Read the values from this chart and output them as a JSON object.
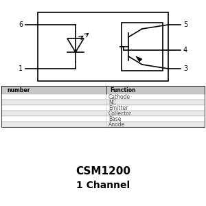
{
  "title": "CSM1200",
  "subtitle": "1 Channel",
  "pin_numbers_left": [
    "6",
    "1"
  ],
  "pin_numbers_right": [
    "5",
    "4",
    "3"
  ],
  "table_header": [
    "number",
    "Function"
  ],
  "table_rows": [
    [
      "",
      "Cathode"
    ],
    [
      "",
      "NC"
    ],
    [
      "",
      "Emitter"
    ],
    [
      "",
      "Collector"
    ],
    [
      "",
      "Base"
    ],
    [
      "",
      "Anode"
    ]
  ],
  "bg_color": "#ffffff",
  "line_color": "#000000",
  "table_header_bg": "#c8c8c8",
  "table_row_bg1": "#ffffff",
  "table_row_bg2": "#e8e8e8",
  "font_size_small": 5.5,
  "font_size_title": 11,
  "font_size_subtitle": 10,
  "font_size_pin": 7,
  "font_size_table": 5.5
}
